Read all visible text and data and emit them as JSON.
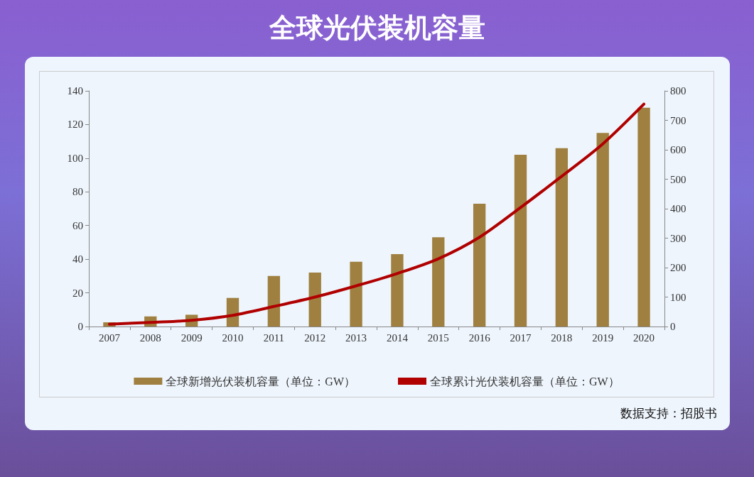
{
  "chart_data": {
    "type": "bar",
    "title": "全球光伏装机容量",
    "categories": [
      "2007",
      "2008",
      "2009",
      "2010",
      "2011",
      "2012",
      "2013",
      "2014",
      "2015",
      "2016",
      "2017",
      "2018",
      "2019",
      "2020"
    ],
    "series": [
      {
        "name": "全球新增光伏装机容量（单位：GW）",
        "color": "#a08040",
        "values": [
          2.5,
          6,
          7,
          17,
          30,
          32,
          38.5,
          43,
          53,
          73,
          102,
          106,
          115,
          130
        ]
      },
      {
        "name": "全球累计光伏装机容量（单位：GW）",
        "type": "line",
        "axis": "y2",
        "color": "#b00000",
        "values": [
          8,
          14,
          21,
          38,
          68,
          100,
          138,
          180,
          230,
          303,
          404,
          510,
          620,
          755
        ]
      }
    ],
    "ylim": [
      0,
      140
    ],
    "yticks": [
      0,
      20,
      40,
      60,
      80,
      100,
      120,
      140
    ],
    "y2lim": [
      0,
      800
    ],
    "y2ticks": [
      0,
      100,
      200,
      300,
      400,
      500,
      600,
      700,
      800
    ],
    "grid": false,
    "legend": "bottom",
    "marker": "none",
    "line_style": "solid",
    "annotations": [
      "数据支持：招股书"
    ]
  }
}
